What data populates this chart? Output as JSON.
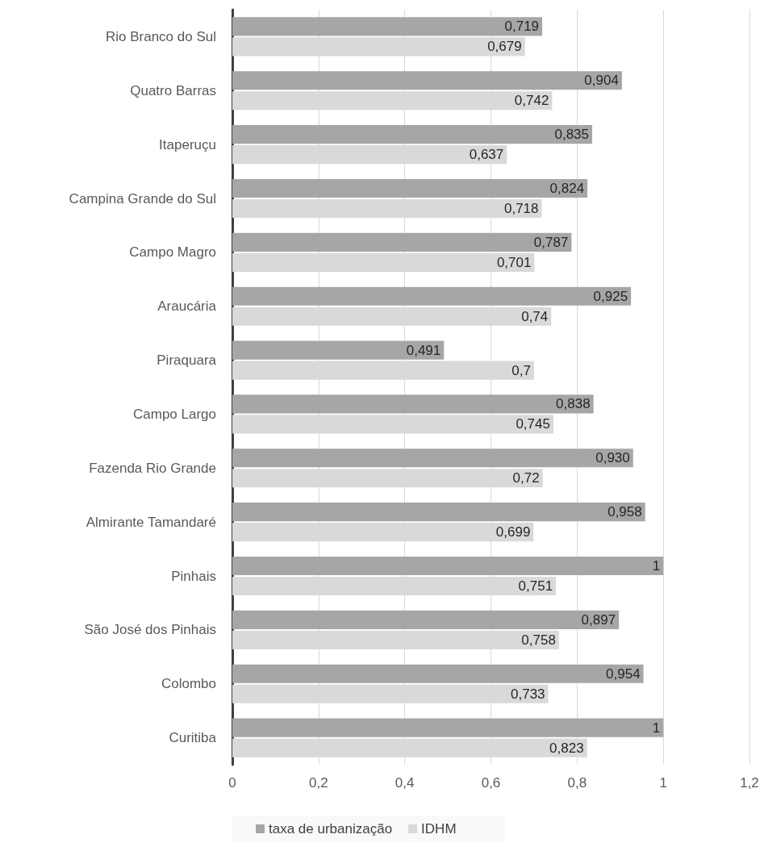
{
  "chart_data": {
    "type": "bar",
    "orientation": "horizontal",
    "categories": [
      "Rio Branco do Sul",
      "Quatro Barras",
      "Itaperuçu",
      "Campina Grande do Sul",
      "Campo Magro",
      "Araucária",
      "Piraquara",
      "Campo Largo",
      "Fazenda Rio Grande",
      "Almirante Tamandaré",
      "Pinhais",
      "São José dos Pinhais",
      "Colombo",
      "Curitiba"
    ],
    "series": [
      {
        "name": "taxa de urbanização",
        "color": "#a6a6a6",
        "values": [
          0.719,
          0.904,
          0.835,
          0.824,
          0.787,
          0.925,
          0.491,
          0.838,
          0.93,
          0.958,
          1,
          0.897,
          0.954,
          1
        ],
        "value_labels": [
          "0,719",
          "0,904",
          "0,835",
          "0,824",
          "0,787",
          "0,925",
          "0,491",
          "0,838",
          "0,930",
          "0,958",
          "1",
          "0,897",
          "0,954",
          "1"
        ]
      },
      {
        "name": "IDHM",
        "color": "#d9d9d9",
        "values": [
          0.679,
          0.742,
          0.637,
          0.718,
          0.701,
          0.74,
          0.7,
          0.745,
          0.72,
          0.699,
          0.751,
          0.758,
          0.733,
          0.823
        ],
        "value_labels": [
          "0,679",
          "0,742",
          "0,637",
          "0,718",
          "0,701",
          "0,74",
          "0,7",
          "0,745",
          "0,72",
          "0,699",
          "0,751",
          "0,758",
          "0,733",
          "0,823"
        ]
      }
    ],
    "xlim": [
      0,
      1.2
    ],
    "xticks": [
      0,
      {
        "value": 0.2,
        "label": "0,2"
      },
      {
        "value": 0.4,
        "label": "0,4"
      },
      {
        "value": 0.6,
        "label": "0,6"
      },
      {
        "value": 0.8,
        "label": "0,8"
      },
      1,
      {
        "value": 1.2,
        "label": "1,2"
      }
    ],
    "grid": "x",
    "legend": "bottom"
  }
}
